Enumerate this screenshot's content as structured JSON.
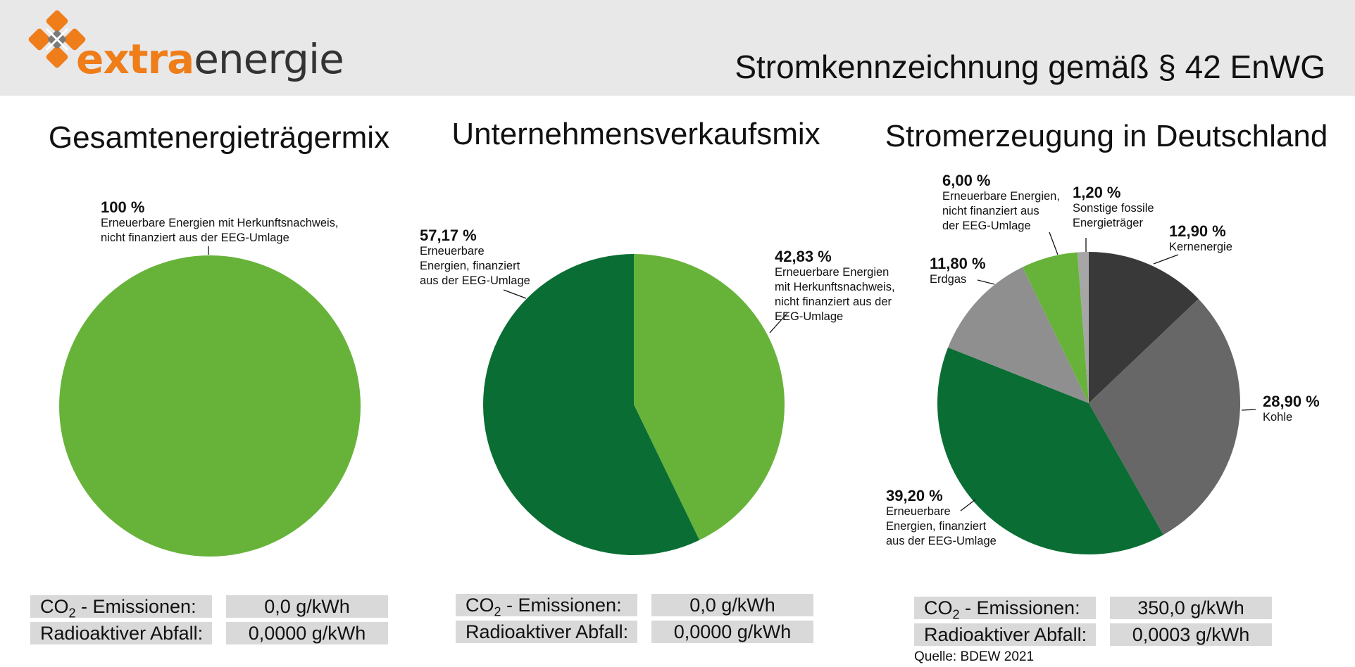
{
  "header": {
    "brand_part1": "extra",
    "brand_part2": "energie",
    "document_title": "Stromkennzeichnung gemäß § 42 EnWG"
  },
  "colors": {
    "accent_orange": "#ef7d1a",
    "light_green": "#67b33a",
    "dark_green": "#0a6e34",
    "dark_grey": "#393939",
    "mid_grey": "#676767",
    "light_grey": "#8f8f8f",
    "sonstige_grey": "#a6a6a6"
  },
  "chart_data": [
    {
      "type": "pie",
      "title": "Gesamtenergieträgermix",
      "slices": [
        {
          "value_label": "100 %",
          "label_lines": [
            "Erneuerbare Energien mit Herkunftsnachweis,",
            "nicht finanziert aus der EEG-Umlage"
          ],
          "value": 100,
          "color": "#67b33a"
        }
      ]
    },
    {
      "type": "pie",
      "title": "Unternehmensverkaufsmix",
      "slices": [
        {
          "value_label": "42,83 %",
          "label_lines": [
            "Erneuerbare Energien",
            "mit Herkunftsnachweis,",
            "nicht finanziert aus der",
            "EEG-Umlage"
          ],
          "value": 42.83,
          "color": "#67b33a"
        },
        {
          "value_label": "57,17 %",
          "label_lines": [
            "Erneuerbare",
            "Energien, finanziert",
            "aus der EEG-Umlage"
          ],
          "value": 57.17,
          "color": "#0a6e34"
        }
      ]
    },
    {
      "type": "pie",
      "title": "Stromerzeugung in Deutschland",
      "slices": [
        {
          "value_label": "12,90 %",
          "label_lines": [
            "Kernenergie"
          ],
          "value": 12.9,
          "color": "#393939"
        },
        {
          "value_label": "28,90 %",
          "label_lines": [
            "Kohle"
          ],
          "value": 28.9,
          "color": "#676767"
        },
        {
          "value_label": "39,20 %",
          "label_lines": [
            "Erneuerbare",
            "Energien, finanziert",
            "aus der EEG-Umlage"
          ],
          "value": 39.2,
          "color": "#0a6e34"
        },
        {
          "value_label": "11,80 %",
          "label_lines": [
            "Erdgas"
          ],
          "value": 11.8,
          "color": "#8f8f8f"
        },
        {
          "value_label": "6,00 %",
          "label_lines": [
            "Erneuerbare Energien,",
            "nicht finanziert aus",
            "der EEG-Umlage"
          ],
          "value": 6.0,
          "color": "#67b33a"
        },
        {
          "value_label": "1,20 %",
          "label_lines": [
            "Sonstige fossile",
            "Energieträger"
          ],
          "value": 1.2,
          "color": "#a6a6a6"
        }
      ]
    }
  ],
  "stats": [
    {
      "co2_label": "CO",
      "co2_sub": "2",
      "co2_suffix": " - Emissionen:",
      "co2_value": "0,0 g/kWh",
      "waste_label": "Radioaktiver Abfall:",
      "waste_value": "0,0000 g/kWh"
    },
    {
      "co2_label": "CO",
      "co2_sub": "2",
      "co2_suffix": " - Emissionen:",
      "co2_value": "0,0 g/kWh",
      "waste_label": "Radioaktiver Abfall:",
      "waste_value": "0,0000 g/kWh"
    },
    {
      "co2_label": "CO",
      "co2_sub": "2",
      "co2_suffix": " - Emissionen:",
      "co2_value": "350,0 g/kWh",
      "waste_label": "Radioaktiver Abfall:",
      "waste_value": "0,0003 g/kWh"
    }
  ],
  "source": "Quelle: BDEW 2021"
}
